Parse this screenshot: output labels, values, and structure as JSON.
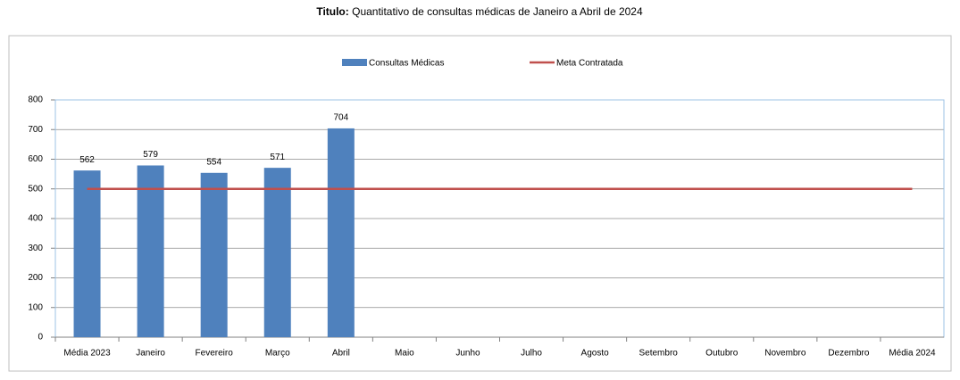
{
  "chart_data": {
    "type": "bar",
    "title_label": "Titulo:",
    "title": "Quantitativo de consultas médicas de Janeiro a  Abril de 2024",
    "categories": [
      "Média 2023",
      "Janeiro",
      "Fevereiro",
      "Março",
      "Abril",
      "Maio",
      "Junho",
      "Julho",
      "Agosto",
      "Setembro",
      "Outubro",
      "Novembro",
      "Dezembro",
      "Média 2024"
    ],
    "series": [
      {
        "name": "Consultas Médicas",
        "type": "bar",
        "color": "#4f81bd",
        "values": [
          562,
          579,
          554,
          571,
          704,
          null,
          null,
          null,
          null,
          null,
          null,
          null,
          null,
          null
        ]
      },
      {
        "name": "Meta Contratada",
        "type": "line",
        "color": "#c0504d",
        "values": [
          500,
          500,
          500,
          500,
          500,
          500,
          500,
          500,
          500,
          500,
          500,
          500,
          500,
          500
        ]
      }
    ],
    "ylim": [
      0,
      800
    ],
    "yticks": [
      0,
      100,
      200,
      300,
      400,
      500,
      600,
      700,
      800
    ],
    "grid": true,
    "legend": "top"
  }
}
